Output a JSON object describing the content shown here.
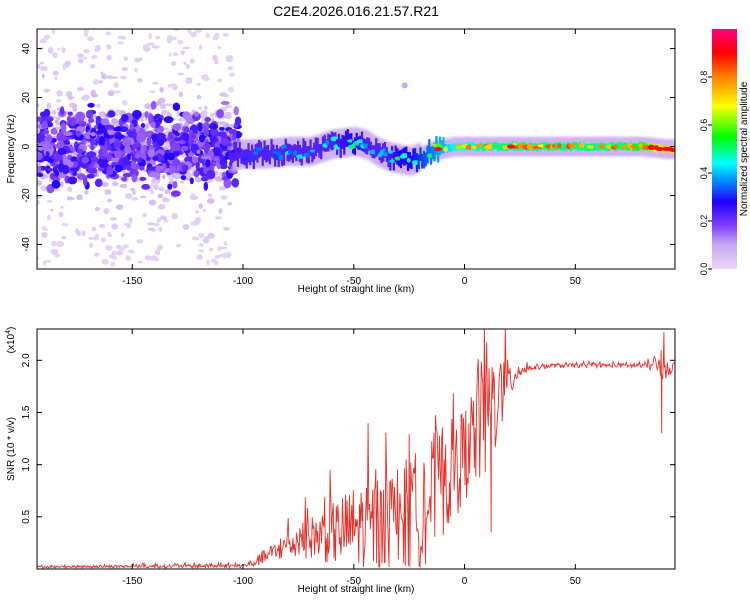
{
  "chart_data": [
    {
      "type": "heatmap",
      "title": "C2E4.2026.016.21.57.R21",
      "xlabel": "Height of straight line (km)",
      "ylabel": "Frequency (Hz)",
      "xlim": [
        -193,
        95
      ],
      "ylim": [
        -50,
        48
      ],
      "xticks": [
        -150,
        -100,
        -50,
        0,
        50
      ],
      "yticks": [
        -40,
        -20,
        0,
        20,
        40
      ],
      "colorbar": {
        "label": "Normalized spectral amplitude",
        "range": [
          0,
          1
        ],
        "ticks": [
          0.0,
          0.2,
          0.4,
          0.6,
          0.8
        ],
        "tick_labels": [
          "0.0",
          "0.2",
          "0.4",
          "0.6",
          "0.8"
        ],
        "stops": [
          "#e8d8f8",
          "#c8a8f0",
          "#8040ff",
          "#2000ff",
          "#0080ff",
          "#00ffff",
          "#00ff00",
          "#ffff00",
          "#ff8000",
          "#ff0000",
          "#ff0080"
        ]
      },
      "track": {
        "x": [
          -105,
          -100,
          -90,
          -80,
          -70,
          -60,
          -50,
          -45,
          -40,
          -35,
          -30,
          -25,
          -20,
          -15,
          -10,
          -5,
          0,
          10,
          20,
          30,
          40,
          50,
          60,
          70,
          80,
          90,
          95
        ],
        "freq": [
          -4,
          -3,
          -3,
          -2,
          -2,
          1,
          2,
          1,
          -2,
          -4,
          -5,
          -6,
          -4,
          -2,
          -1,
          0,
          0,
          0,
          0,
          0,
          0,
          0,
          0,
          0,
          0,
          -1,
          -1
        ],
        "amplitude": [
          0.25,
          0.35,
          0.35,
          0.4,
          0.4,
          0.45,
          0.5,
          0.45,
          0.45,
          0.45,
          0.5,
          0.5,
          0.55,
          0.6,
          0.65,
          0.7,
          0.7,
          0.75,
          0.75,
          0.75,
          0.75,
          0.75,
          0.75,
          0.75,
          0.8,
          0.95,
          0.9
        ]
      },
      "noise_region": {
        "x": [
          -193,
          -105
        ],
        "freq_spread": [
          -50,
          48
        ]
      },
      "outlier": {
        "x": -27,
        "freq": 25
      }
    },
    {
      "type": "line",
      "title": "",
      "xlabel": "Height of straight line (km)",
      "ylabel": "SNR (10 * v/v)",
      "scale_label": "(x10",
      "scale_exp": "4",
      "xlim": [
        -193,
        95
      ],
      "ylim": [
        0,
        2.3
      ],
      "xticks": [
        -150,
        -100,
        -50,
        0,
        50
      ],
      "yticks": [
        0.5,
        1.0,
        1.5,
        2.0
      ],
      "ytick_labels": [
        "0.5",
        "1.0",
        "1.5",
        "2.0"
      ],
      "series": [
        {
          "name": "SNR",
          "color": "#e8302a",
          "x": [
            -193,
            -100,
            -95,
            -90,
            -80,
            -70,
            -60,
            -50,
            -40,
            -30,
            -20,
            -15,
            -10,
            -5,
            0,
            5,
            10,
            15,
            20,
            25,
            30,
            40,
            50,
            60,
            70,
            80,
            85,
            90,
            95
          ],
          "base": [
            0.02,
            0.03,
            0.06,
            0.12,
            0.22,
            0.3,
            0.34,
            0.4,
            0.42,
            0.46,
            0.56,
            0.7,
            0.85,
            0.95,
            1.1,
            1.3,
            1.5,
            1.65,
            1.8,
            1.9,
            1.93,
            1.95,
            1.95,
            1.95,
            1.95,
            1.95,
            1.95,
            1.93,
            1.94
          ],
          "noise_amp": [
            0.01,
            0.02,
            0.04,
            0.07,
            0.13,
            0.2,
            0.3,
            0.4,
            0.48,
            0.55,
            0.6,
            0.6,
            0.55,
            0.5,
            0.45,
            0.55,
            0.7,
            0.45,
            0.2,
            0.06,
            0.03,
            0.02,
            0.02,
            0.02,
            0.02,
            0.03,
            0.05,
            0.12,
            0.04
          ],
          "spikes": [
            {
              "x": 9,
              "y": 2.26
            },
            {
              "x": 12,
              "y": 0.35
            },
            {
              "x": 89,
              "y": 1.3
            },
            {
              "x": 90,
              "y": 2.27
            }
          ]
        }
      ]
    }
  ]
}
